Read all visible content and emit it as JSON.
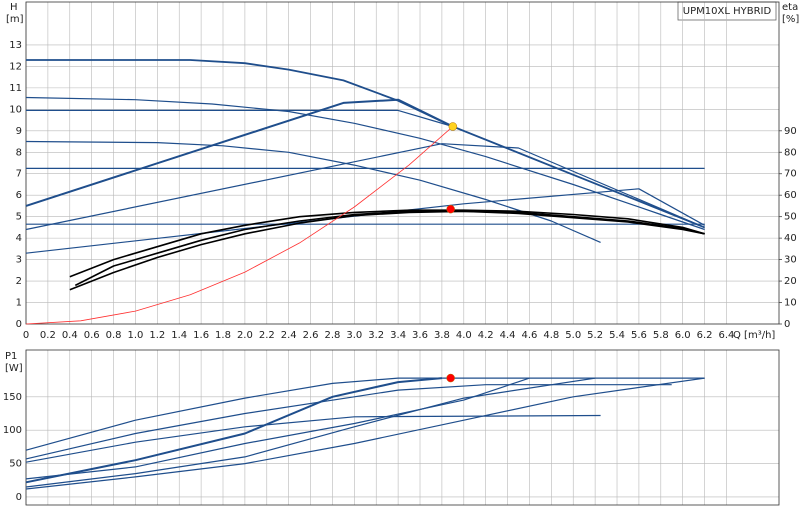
{
  "chart_data": [
    {
      "type": "line",
      "title": "UPM10XL HYBRID",
      "y_label": "H",
      "y_unit": "[m]",
      "y2_label": "eta",
      "y2_unit": "[%]",
      "x_label": "Q [m³/h]",
      "xlim": [
        0,
        6.88
      ],
      "ylim": [
        0,
        15
      ],
      "y2lim": [
        0,
        150
      ],
      "grid": true,
      "xticks": [
        0,
        0.2,
        0.4,
        0.6,
        0.8,
        {
          "value": 1,
          "label": "1.0"
        },
        1.2,
        1.4,
        1.6,
        1.8,
        {
          "value": 2,
          "label": "2.0"
        },
        2.2,
        2.4,
        2.6,
        2.8,
        {
          "value": 3,
          "label": "3.0"
        },
        3.2,
        3.4,
        3.6,
        3.8,
        {
          "value": 4,
          "label": "4.0"
        },
        4.2,
        4.4,
        4.6,
        4.8,
        {
          "value": 5,
          "label": "5.0"
        },
        5.2,
        5.4,
        5.6,
        5.8,
        {
          "value": 6,
          "label": "6.0"
        },
        6.2,
        6.4
      ],
      "yticks": [
        0,
        1,
        2,
        3,
        4,
        5,
        6,
        7,
        8,
        9,
        10,
        11,
        12,
        13
      ],
      "y2ticks": [
        0,
        10,
        20,
        30,
        40,
        50,
        60,
        70,
        80,
        90
      ],
      "series": [
        {
          "color": "#1f4e8c",
          "width": 1.8,
          "x": [
            0,
            1.5,
            2.0,
            2.4,
            2.9,
            3.4,
            3.9,
            6.2
          ],
          "values": [
            12.3,
            12.3,
            12.15,
            11.85,
            11.35,
            10.4,
            9.2,
            4.5
          ]
        },
        {
          "color": "#1f4e8c",
          "width": 1.2,
          "x": [
            0,
            1.0,
            1.7,
            2.4,
            3.0,
            3.6,
            4.2,
            5.0,
            5.8,
            6.2
          ],
          "values": [
            10.55,
            10.45,
            10.25,
            9.9,
            9.35,
            8.65,
            7.8,
            6.5,
            5.1,
            4.4
          ]
        },
        {
          "color": "#1f4e8c",
          "width": 1.2,
          "x": [
            0,
            1.2,
            1.8,
            2.4,
            3.0,
            3.6,
            4.2,
            4.8,
            5.25
          ],
          "values": [
            8.5,
            8.45,
            8.3,
            8.0,
            7.4,
            6.7,
            5.8,
            4.8,
            3.8
          ]
        },
        {
          "color": "#1f4e8c",
          "width": 1.2,
          "x": [
            0,
            3.4,
            3.9
          ],
          "values": [
            9.95,
            9.95,
            9.2
          ]
        },
        {
          "color": "#1f4e8c",
          "width": 1.2,
          "x": [
            0,
            6.2
          ],
          "values": [
            7.25,
            7.25
          ]
        },
        {
          "color": "#1f4e8c",
          "width": 1.2,
          "x": [
            0,
            6.2
          ],
          "values": [
            4.65,
            4.65
          ]
        },
        {
          "color": "#1f4e8c",
          "width": 2,
          "x": [
            0,
            2.9,
            3.4,
            3.9
          ],
          "values": [
            5.5,
            10.3,
            10.45,
            9.2
          ]
        },
        {
          "color": "#1f4e8c",
          "width": 1.2,
          "x": [
            0,
            3.8,
            4.5,
            6.2
          ],
          "values": [
            4.4,
            8.4,
            8.2,
            4.5
          ]
        },
        {
          "color": "#1f4e8c",
          "width": 1.2,
          "x": [
            0,
            4.0,
            5.6,
            6.2
          ],
          "values": [
            3.3,
            5.6,
            6.3,
            4.6
          ]
        },
        {
          "color": "#000000",
          "width": 1.6,
          "axis": "y2",
          "x": [
            0.4,
            0.8,
            1.2,
            1.6,
            2.0,
            2.5,
            3.0,
            3.5,
            4.0,
            4.5,
            5.0,
            5.5,
            6.0,
            6.2
          ],
          "values": [
            22,
            30,
            36,
            42,
            46,
            50,
            52,
            53,
            53,
            52.5,
            51,
            49,
            45,
            42
          ]
        },
        {
          "color": "#000000",
          "width": 1.6,
          "axis": "y2",
          "x": [
            0.45,
            0.8,
            1.2,
            1.6,
            2.0,
            2.5,
            3.0,
            3.5,
            4.0,
            4.5,
            5.0,
            5.5,
            6.0,
            6.2
          ],
          "values": [
            18,
            27,
            33,
            39,
            44,
            48,
            51,
            52.5,
            52.5,
            52,
            50,
            48,
            44.5,
            42
          ]
        },
        {
          "color": "#000000",
          "width": 1.6,
          "axis": "y2",
          "x": [
            0.4,
            0.8,
            1.2,
            1.6,
            2.0,
            2.5,
            3.0,
            3.5,
            4.0,
            4.5,
            5.0,
            5.5,
            6.0,
            6.2
          ],
          "values": [
            16,
            24,
            31,
            37,
            42,
            47,
            50.5,
            52,
            52.5,
            51.5,
            49.5,
            47.5,
            44,
            42
          ]
        },
        {
          "color": "#ff3030",
          "width": 0.8,
          "x": [
            0,
            0.5,
            1,
            1.5,
            2,
            2.5,
            3,
            3.5,
            3.9
          ],
          "values": [
            0,
            0.15,
            0.6,
            1.36,
            2.42,
            3.78,
            5.45,
            7.41,
            9.2
          ]
        }
      ],
      "points": [
        {
          "x": 3.9,
          "y": 9.2,
          "color": "#ffd21f"
        },
        {
          "x": 3.88,
          "y": 53.5,
          "color": "#ff0000",
          "axis": "y2"
        }
      ]
    },
    {
      "type": "line",
      "y_label": "P1",
      "y_unit": "[W]",
      "xlim": [
        0,
        6.88
      ],
      "ylim": [
        -12,
        220
      ],
      "grid": true,
      "xticks": [
        0,
        0.2,
        0.4,
        0.6,
        0.8,
        1,
        1.2,
        1.4,
        1.6,
        1.8,
        2,
        2.2,
        2.4,
        2.6,
        2.8,
        3,
        3.2,
        3.4,
        3.6,
        3.8,
        4,
        4.2,
        4.4,
        4.6,
        4.8,
        5,
        5.2,
        5.4,
        5.6,
        5.8,
        6,
        6.2,
        6.4
      ],
      "yticks": [
        0,
        50,
        100,
        150
      ],
      "series": [
        {
          "color": "#1f4e8c",
          "width": 1.2,
          "x": [
            0,
            1,
            2,
            2.8,
            3.4,
            6.2
          ],
          "values": [
            70,
            115,
            148,
            170,
            178,
            178
          ]
        },
        {
          "color": "#1f4e8c",
          "width": 1.2,
          "x": [
            0,
            1,
            2,
            3,
            3.4,
            4.2,
            5.9
          ],
          "values": [
            57,
            95,
            125,
            150,
            160,
            168,
            168
          ]
        },
        {
          "color": "#1f4e8c",
          "width": 1.2,
          "x": [
            0,
            1,
            2,
            3,
            5.25
          ],
          "values": [
            52,
            82,
            105,
            120,
            122
          ]
        },
        {
          "color": "#1f4e8c",
          "width": 2,
          "x": [
            0,
            1,
            2,
            2.8,
            3.4,
            3.8
          ],
          "values": [
            22,
            55,
            95,
            150,
            172,
            178
          ]
        },
        {
          "color": "#1f4e8c",
          "width": 1.2,
          "x": [
            0,
            1,
            2,
            3,
            4,
            5.2
          ],
          "values": [
            15,
            35,
            60,
            105,
            148,
            178
          ]
        },
        {
          "color": "#1f4e8c",
          "width": 1.2,
          "x": [
            0,
            1,
            2,
            3,
            4,
            5,
            6.2
          ],
          "values": [
            12,
            30,
            50,
            80,
            115,
            150,
            178
          ]
        },
        {
          "color": "#1f4e8c",
          "width": 1.2,
          "x": [
            0,
            1,
            2,
            3,
            4,
            4.6
          ],
          "values": [
            27,
            45,
            80,
            110,
            145,
            178
          ]
        }
      ],
      "points": [
        {
          "x": 3.88,
          "y": 178,
          "color": "#ff0000"
        }
      ]
    }
  ]
}
